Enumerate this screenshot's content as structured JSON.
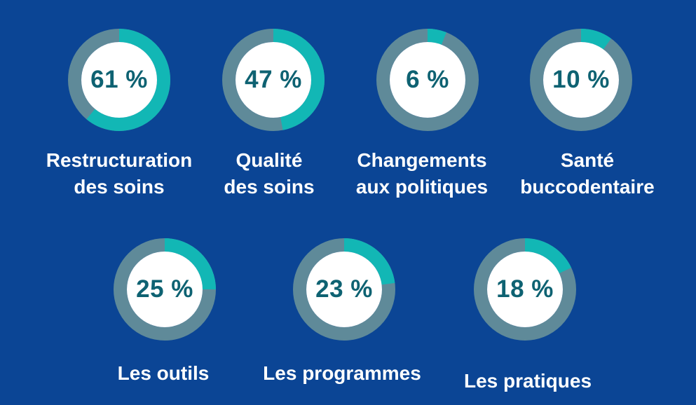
{
  "colors": {
    "background": "#0b4595",
    "ring_track": "#5f8a99",
    "ring_value": "#12b7b5",
    "center_fill": "#ffffff",
    "percent_text": "#0e6272",
    "label_text": "#ffffff"
  },
  "chart_data": {
    "type": "donut",
    "items": [
      {
        "label_lines": [
          "Restructuration",
          "des soins"
        ],
        "value": 61,
        "display": "61 %"
      },
      {
        "label_lines": [
          "Qualité",
          "des soins"
        ],
        "value": 47,
        "display": "47 %"
      },
      {
        "label_lines": [
          "Changements",
          "aux politiques"
        ],
        "value": 6,
        "display": "6 %"
      },
      {
        "label_lines": [
          "Santé",
          "buccodentaire"
        ],
        "value": 10,
        "display": "10 %"
      },
      {
        "label_lines": [
          "Les outils"
        ],
        "value": 25,
        "display": "25 %"
      },
      {
        "label_lines": [
          "Les programmes"
        ],
        "value": 23,
        "display": "23 %"
      },
      {
        "label_lines": [
          "Les pratiques"
        ],
        "value": 18,
        "display": "18 %"
      }
    ]
  }
}
